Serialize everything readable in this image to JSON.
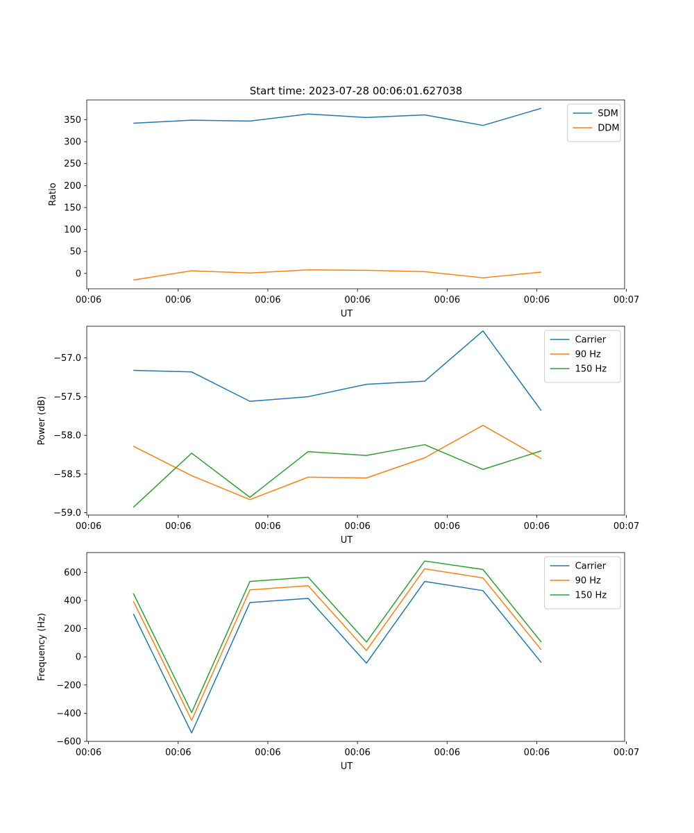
{
  "figure": {
    "suptitle": "Start time: 2023-07-28 00:06:01.627038"
  },
  "colors": {
    "blue": "#1f77b4",
    "orange": "#ff7f0e",
    "green": "#2ca02c"
  },
  "chart_data": [
    {
      "id": "ratio",
      "type": "line",
      "title": "Start time: 2023-07-28 00:06:01.627038",
      "xlabel": "UT",
      "ylabel": "Ratio",
      "x": [
        0.5,
        1.15,
        1.8,
        2.45,
        3.1,
        3.75,
        4.4,
        5.05
      ],
      "xlim": [
        -0.02,
        5.98
      ],
      "xticks": [
        0,
        1,
        2,
        3,
        4,
        5,
        6
      ],
      "xtick_labels": [
        "00:06",
        "00:06",
        "00:06",
        "00:06",
        "00:06",
        "00:06",
        "00:07"
      ],
      "ylim": [
        -35,
        395
      ],
      "yticks": [
        0,
        50,
        100,
        150,
        200,
        250,
        300,
        350
      ],
      "legend_position": "top-right",
      "series": [
        {
          "name": "SDM",
          "color": "#1f77b4",
          "values": [
            342,
            349,
            347,
            363,
            355,
            361,
            337,
            376
          ]
        },
        {
          "name": "DDM",
          "color": "#ff7f0e",
          "values": [
            -15,
            6,
            1,
            8,
            7,
            4,
            -10,
            3
          ]
        }
      ]
    },
    {
      "id": "power",
      "type": "line",
      "title": "",
      "xlabel": "UT",
      "ylabel": "Power (dB)",
      "x": [
        0.5,
        1.15,
        1.8,
        2.45,
        3.1,
        3.75,
        4.4,
        5.05
      ],
      "xlim": [
        -0.02,
        5.98
      ],
      "xticks": [
        0,
        1,
        2,
        3,
        4,
        5,
        6
      ],
      "xtick_labels": [
        "00:06",
        "00:06",
        "00:06",
        "00:06",
        "00:06",
        "00:06",
        "00:07"
      ],
      "ylim": [
        -59.03,
        -56.59
      ],
      "yticks": [
        -59.0,
        -58.5,
        -58.0,
        -57.5,
        -57.0
      ],
      "ytick_labels": [
        "−59.0",
        "−58.5",
        "−58.0",
        "−57.5",
        "−57.0"
      ],
      "legend_position": "top-right",
      "series": [
        {
          "name": "Carrier",
          "color": "#1f77b4",
          "values": [
            -57.16,
            -57.18,
            -57.56,
            -57.5,
            -57.34,
            -57.3,
            -56.65,
            -57.68
          ]
        },
        {
          "name": "90 Hz",
          "color": "#ff7f0e",
          "values": [
            -58.14,
            -58.52,
            -58.83,
            -58.54,
            -58.55,
            -58.29,
            -57.87,
            -58.3
          ]
        },
        {
          "name": "150 Hz",
          "color": "#2ca02c",
          "values": [
            -58.93,
            -58.23,
            -58.8,
            -58.21,
            -58.26,
            -58.12,
            -58.44,
            -58.2
          ]
        }
      ]
    },
    {
      "id": "frequency",
      "type": "line",
      "title": "",
      "xlabel": "UT",
      "ylabel": "Frequency (Hz)",
      "x": [
        0.5,
        1.15,
        1.8,
        2.45,
        3.1,
        3.75,
        4.4,
        5.05
      ],
      "xlim": [
        -0.02,
        5.98
      ],
      "xticks": [
        0,
        1,
        2,
        3,
        4,
        5,
        6
      ],
      "xtick_labels": [
        "00:06",
        "00:06",
        "00:06",
        "00:06",
        "00:06",
        "00:06",
        "00:07"
      ],
      "ylim": [
        -600,
        740
      ],
      "yticks": [
        -600,
        -400,
        -200,
        0,
        200,
        400,
        600
      ],
      "ytick_labels": [
        "−600",
        "−400",
        "−200",
        "0",
        "200",
        "400",
        "600"
      ],
      "legend_position": "top-right",
      "series": [
        {
          "name": "Carrier",
          "color": "#1f77b4",
          "values": [
            305,
            -540,
            385,
            415,
            -45,
            535,
            470,
            -40
          ]
        },
        {
          "name": "90 Hz",
          "color": "#ff7f0e",
          "values": [
            395,
            -450,
            475,
            505,
            45,
            625,
            560,
            50
          ]
        },
        {
          "name": "150 Hz",
          "color": "#2ca02c",
          "values": [
            450,
            -395,
            535,
            565,
            105,
            680,
            620,
            105
          ]
        }
      ]
    }
  ]
}
